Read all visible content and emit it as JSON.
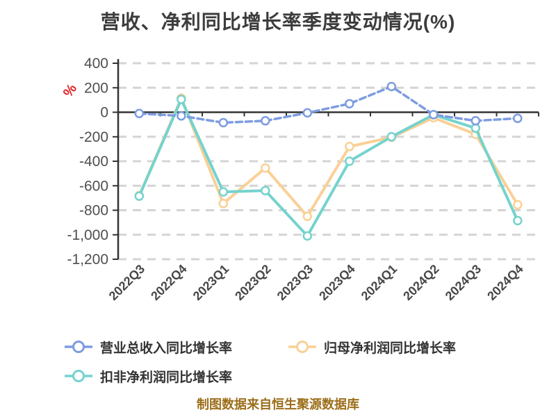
{
  "page": {
    "title": "营收、净利同比增长率季度变动情况(%)",
    "footer": "制图数据来自恒生聚源数据库"
  },
  "chart_data": {
    "type": "line",
    "title": "营收、净利同比增长率季度变动情况(%)",
    "y_axis_name": "%",
    "categories": [
      "2022Q3",
      "2022Q4",
      "2023Q1",
      "2023Q2",
      "2023Q3",
      "2023Q4",
      "2024Q1",
      "2024Q2",
      "2024Q3",
      "2024Q4"
    ],
    "series": [
      {
        "name": "营业总收入同比增长率",
        "color": "#7d9ce0",
        "line_style": "dashed",
        "values": [
          -10,
          -30,
          -85,
          -70,
          -5,
          70,
          210,
          -20,
          -70,
          -50
        ]
      },
      {
        "name": "归母净利润同比增长率",
        "color": "#fad096",
        "line_style": "solid",
        "values": [
          -680,
          115,
          -745,
          -455,
          -850,
          -280,
          -205,
          -45,
          -180,
          -755
        ]
      },
      {
        "name": "扣非净利润同比增长率",
        "color": "#74d3ce",
        "line_style": "solid",
        "values": [
          -685,
          105,
          -650,
          -640,
          -1010,
          -400,
          -200,
          -20,
          -130,
          -885
        ]
      }
    ],
    "ylim": [
      -1200,
      400
    ],
    "ytick_values": [
      400,
      200,
      0,
      -200,
      -400,
      -600,
      -800,
      -1000,
      -1200
    ],
    "ytick_labels": [
      "400",
      "200",
      "0",
      "-200",
      "-400",
      "-600",
      "-800",
      "-1,000",
      "-1,200"
    ],
    "grid": "horizontal dashed gridlines, x-axis drawn on zero line",
    "legend_position": "bottom-left, two rows"
  },
  "colors": {
    "grid": "#d4d4d4",
    "axis": "#333333",
    "axis_label": "#4f4f4f",
    "x_label": "#474747",
    "title": "#3c3c3c",
    "axis_name_pct": "#e01f1f",
    "footer": "#9c6e1a",
    "legend_text": "#333333",
    "marker_fill": "#ffffff"
  }
}
